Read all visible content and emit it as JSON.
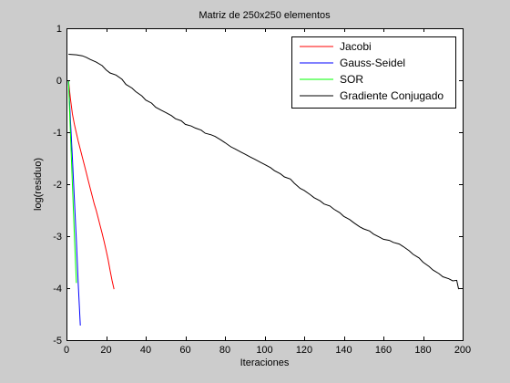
{
  "chart_data": {
    "type": "line",
    "title": "Matriz de 250x250 elementos",
    "xlabel": "Iteraciones",
    "ylabel": "log(residuo)",
    "xlim": [
      0,
      200
    ],
    "ylim": [
      -5,
      1
    ],
    "xticks": [
      0,
      20,
      40,
      60,
      80,
      100,
      120,
      140,
      160,
      180,
      200
    ],
    "yticks": [
      1,
      0,
      -1,
      -2,
      -3,
      -4,
      -5
    ],
    "grid": false,
    "legend_position": "top-right",
    "background_color": "#cccccc",
    "plot_area_color": "#ffffff",
    "series": [
      {
        "name": "Jacobi",
        "color": "#ff0000",
        "x": [
          1,
          2,
          3,
          4,
          5,
          6,
          7,
          8,
          9,
          10,
          11,
          12,
          13,
          14,
          15,
          16,
          17,
          18,
          19,
          20,
          21,
          22,
          23,
          24
        ],
        "y": [
          0.0,
          -0.35,
          -0.65,
          -0.85,
          -1.02,
          -1.18,
          -1.33,
          -1.48,
          -1.63,
          -1.78,
          -1.93,
          -2.08,
          -2.23,
          -2.38,
          -2.5,
          -2.65,
          -2.8,
          -2.95,
          -3.1,
          -3.27,
          -3.45,
          -3.65,
          -3.85,
          -4.02
        ]
      },
      {
        "name": "Gauss-Seidel",
        "color": "#0000ff",
        "x": [
          1,
          2,
          3,
          4,
          5,
          6,
          7
        ],
        "y": [
          0.0,
          -0.75,
          -1.5,
          -2.3,
          -3.1,
          -3.95,
          -4.72
        ]
      },
      {
        "name": "SOR",
        "color": "#00ff00",
        "x": [
          1,
          2,
          3,
          4,
          5
        ],
        "y": [
          0.0,
          -1.0,
          -2.0,
          -3.0,
          -3.9
        ]
      },
      {
        "name": "Gradiente Conjugado",
        "color": "#000000",
        "x": [
          1,
          5,
          8,
          10,
          12,
          15,
          18,
          20,
          22,
          25,
          28,
          30,
          33,
          35,
          38,
          40,
          43,
          45,
          48,
          50,
          53,
          55,
          58,
          60,
          63,
          65,
          68,
          70,
          73,
          75,
          78,
          80,
          83,
          85,
          88,
          90,
          93,
          95,
          98,
          100,
          103,
          105,
          108,
          110,
          113,
          115,
          118,
          120,
          123,
          125,
          128,
          130,
          133,
          135,
          138,
          140,
          143,
          145,
          148,
          150,
          153,
          155,
          158,
          160,
          163,
          165,
          168,
          170,
          173,
          175,
          178,
          180,
          183,
          185,
          188,
          190,
          193,
          195,
          197,
          198
        ],
        "y": [
          0.5,
          0.49,
          0.47,
          0.44,
          0.4,
          0.35,
          0.28,
          0.2,
          0.14,
          0.1,
          0.02,
          -0.08,
          -0.15,
          -0.22,
          -0.3,
          -0.38,
          -0.44,
          -0.52,
          -0.58,
          -0.62,
          -0.68,
          -0.74,
          -0.78,
          -0.85,
          -0.88,
          -0.92,
          -0.96,
          -1.02,
          -1.05,
          -1.08,
          -1.15,
          -1.2,
          -1.28,
          -1.32,
          -1.38,
          -1.42,
          -1.48,
          -1.52,
          -1.58,
          -1.62,
          -1.68,
          -1.74,
          -1.8,
          -1.86,
          -1.9,
          -1.98,
          -2.08,
          -2.12,
          -2.2,
          -2.26,
          -2.32,
          -2.38,
          -2.42,
          -2.48,
          -2.55,
          -2.62,
          -2.68,
          -2.74,
          -2.82,
          -2.86,
          -2.9,
          -2.96,
          -3.02,
          -3.06,
          -3.08,
          -3.12,
          -3.15,
          -3.2,
          -3.28,
          -3.35,
          -3.42,
          -3.5,
          -3.58,
          -3.65,
          -3.72,
          -3.78,
          -3.82,
          -3.86,
          -3.85,
          -4.02
        ]
      }
    ]
  }
}
